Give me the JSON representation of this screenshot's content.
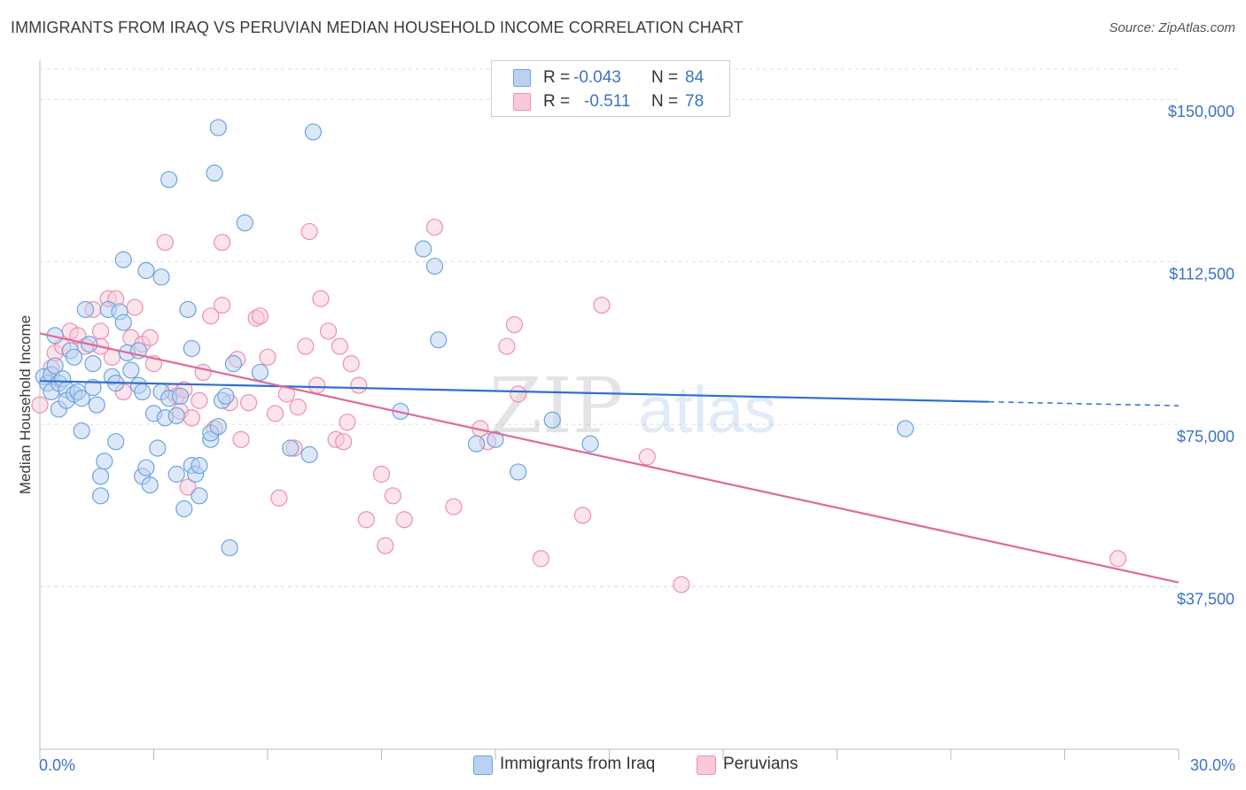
{
  "header": {
    "title": "IMMIGRANTS FROM IRAQ VS PERUVIAN MEDIAN HOUSEHOLD INCOME CORRELATION CHART",
    "source": "Source: ZipAtlas.com"
  },
  "watermark": {
    "zip": "ZIP",
    "atlas": "atlas"
  },
  "stats": [
    {
      "r_label": "R =",
      "r_value": "-0.043",
      "n_label": "N =",
      "n_value": "84",
      "color": "#6fa3e0",
      "fill": "#b9d1f2"
    },
    {
      "r_label": "R =",
      "r_value": "-0.511",
      "n_label": "N =",
      "n_value": "78",
      "color": "#ee8fb0",
      "fill": "#f9c9d8"
    }
  ],
  "legend": {
    "iraq": {
      "label": "Immigrants from Iraq",
      "color": "#6fa3e0",
      "fill": "#b9d1f2"
    },
    "peru": {
      "label": "Peruvians",
      "color": "#ee8fb0",
      "fill": "#f9c9d8"
    }
  },
  "chart_data": {
    "type": "scatter",
    "title": "IMMIGRANTS FROM IRAQ VS PERUVIAN MEDIAN HOUSEHOLD INCOME CORRELATION CHART",
    "xlabel": "",
    "ylabel": "Median Household Income",
    "xlim": [
      0,
      30
    ],
    "ylim": [
      0,
      157000
    ],
    "x_tick_labels": [
      {
        "value": 0,
        "label": "0.0%"
      },
      {
        "value": 30,
        "label": "30.0%"
      }
    ],
    "y_ticks": [
      {
        "value": 37500,
        "label": "$37,500"
      },
      {
        "value": 75000,
        "label": "$75,000"
      },
      {
        "value": 112500,
        "label": "$112,500"
      },
      {
        "value": 150000,
        "label": "$150,000"
      }
    ],
    "grid": "horizontal dashed",
    "series": [
      {
        "name": "Immigrants from Iraq",
        "color": "#6fa3e0",
        "fill": "#b9d1f2",
        "trend": {
          "x0": 0,
          "y0": 85000,
          "x1": 25,
          "y1": 80200,
          "dash_to": 30,
          "dash_y": 79300
        },
        "points": [
          [
            0.1,
            86000
          ],
          [
            0.2,
            84500
          ],
          [
            0.3,
            82500
          ],
          [
            0.3,
            86500
          ],
          [
            0.4,
            95500
          ],
          [
            0.4,
            88500
          ],
          [
            0.5,
            84500
          ],
          [
            0.5,
            78500
          ],
          [
            0.6,
            85500
          ],
          [
            0.7,
            83000
          ],
          [
            0.7,
            80500
          ],
          [
            0.8,
            92000
          ],
          [
            0.9,
            82000
          ],
          [
            0.9,
            90500
          ],
          [
            1.0,
            82500
          ],
          [
            1.1,
            81000
          ],
          [
            1.1,
            73500
          ],
          [
            1.2,
            101500
          ],
          [
            1.3,
            93500
          ],
          [
            1.4,
            89000
          ],
          [
            1.4,
            83500
          ],
          [
            1.5,
            79500
          ],
          [
            1.6,
            63000
          ],
          [
            1.6,
            58500
          ],
          [
            1.7,
            66500
          ],
          [
            1.8,
            101500
          ],
          [
            1.9,
            86000
          ],
          [
            2.0,
            71000
          ],
          [
            2.0,
            84500
          ],
          [
            2.1,
            101000
          ],
          [
            2.2,
            98500
          ],
          [
            2.2,
            113000
          ],
          [
            2.3,
            91500
          ],
          [
            2.4,
            87500
          ],
          [
            2.6,
            92000
          ],
          [
            2.6,
            84000
          ],
          [
            2.7,
            82500
          ],
          [
            2.7,
            63000
          ],
          [
            2.8,
            110500
          ],
          [
            2.8,
            65000
          ],
          [
            2.9,
            61000
          ],
          [
            3.0,
            77500
          ],
          [
            3.1,
            69500
          ],
          [
            3.2,
            82500
          ],
          [
            3.2,
            109000
          ],
          [
            3.3,
            76500
          ],
          [
            3.4,
            81000
          ],
          [
            3.4,
            131500
          ],
          [
            3.6,
            77000
          ],
          [
            3.6,
            63500
          ],
          [
            3.7,
            81500
          ],
          [
            3.8,
            55500
          ],
          [
            3.9,
            101500
          ],
          [
            4.0,
            92500
          ],
          [
            4.0,
            65500
          ],
          [
            4.1,
            63500
          ],
          [
            4.2,
            58500
          ],
          [
            4.2,
            65500
          ],
          [
            4.5,
            71500
          ],
          [
            4.5,
            73000
          ],
          [
            4.6,
            133000
          ],
          [
            4.7,
            74500
          ],
          [
            4.7,
            143500
          ],
          [
            4.8,
            80500
          ],
          [
            4.9,
            81500
          ],
          [
            5.0,
            46500
          ],
          [
            5.1,
            89000
          ],
          [
            5.4,
            121500
          ],
          [
            5.8,
            87000
          ],
          [
            6.6,
            69500
          ],
          [
            7.1,
            68000
          ],
          [
            7.2,
            142500
          ],
          [
            9.5,
            78000
          ],
          [
            10.1,
            115500
          ],
          [
            10.4,
            111500
          ],
          [
            10.5,
            94500
          ],
          [
            11.5,
            70500
          ],
          [
            12.0,
            71500
          ],
          [
            12.6,
            64000
          ],
          [
            13.5,
            76000
          ],
          [
            14.5,
            70500
          ],
          [
            22.8,
            74000
          ]
        ]
      },
      {
        "name": "Peruvians",
        "color": "#ee8fb0",
        "fill": "#f9c9d8",
        "trend": {
          "x0": 0,
          "y0": 96000,
          "x1": 30,
          "y1": 38500
        },
        "points": [
          [
            0.0,
            79500
          ],
          [
            0.3,
            88000
          ],
          [
            0.4,
            91500
          ],
          [
            0.6,
            93000
          ],
          [
            0.8,
            96500
          ],
          [
            1.0,
            95500
          ],
          [
            1.2,
            93000
          ],
          [
            1.4,
            101500
          ],
          [
            1.6,
            93000
          ],
          [
            1.6,
            96500
          ],
          [
            1.8,
            104000
          ],
          [
            1.9,
            90500
          ],
          [
            2.0,
            104000
          ],
          [
            2.2,
            82500
          ],
          [
            2.4,
            95000
          ],
          [
            2.5,
            102000
          ],
          [
            2.7,
            93500
          ],
          [
            2.9,
            95000
          ],
          [
            3.0,
            89000
          ],
          [
            3.3,
            117000
          ],
          [
            3.5,
            82500
          ],
          [
            3.6,
            81500
          ],
          [
            3.7,
            78000
          ],
          [
            3.8,
            83000
          ],
          [
            3.9,
            60500
          ],
          [
            4.0,
            76500
          ],
          [
            4.2,
            80500
          ],
          [
            4.3,
            87000
          ],
          [
            4.5,
            100000
          ],
          [
            4.6,
            74000
          ],
          [
            4.8,
            117000
          ],
          [
            4.8,
            102500
          ],
          [
            5.0,
            80000
          ],
          [
            5.2,
            90000
          ],
          [
            5.3,
            71500
          ],
          [
            5.5,
            80000
          ],
          [
            5.7,
            99500
          ],
          [
            5.8,
            100000
          ],
          [
            6.0,
            90500
          ],
          [
            6.2,
            77500
          ],
          [
            6.3,
            58000
          ],
          [
            6.5,
            82000
          ],
          [
            6.7,
            69500
          ],
          [
            6.8,
            79000
          ],
          [
            7.0,
            93000
          ],
          [
            7.1,
            119500
          ],
          [
            7.3,
            84000
          ],
          [
            7.4,
            104000
          ],
          [
            7.6,
            96500
          ],
          [
            7.8,
            71500
          ],
          [
            7.9,
            93000
          ],
          [
            8.0,
            71000
          ],
          [
            8.1,
            75500
          ],
          [
            8.2,
            89000
          ],
          [
            8.4,
            84000
          ],
          [
            8.6,
            53000
          ],
          [
            9.0,
            63500
          ],
          [
            9.1,
            47000
          ],
          [
            9.3,
            58500
          ],
          [
            9.6,
            53000
          ],
          [
            10.4,
            120500
          ],
          [
            10.9,
            56000
          ],
          [
            11.6,
            74000
          ],
          [
            11.8,
            71000
          ],
          [
            12.3,
            93000
          ],
          [
            12.5,
            98000
          ],
          [
            12.6,
            82000
          ],
          [
            13.2,
            44000
          ],
          [
            14.3,
            54000
          ],
          [
            14.8,
            102500
          ],
          [
            16.0,
            67500
          ],
          [
            16.9,
            38000
          ],
          [
            28.4,
            44000
          ]
        ]
      }
    ]
  }
}
